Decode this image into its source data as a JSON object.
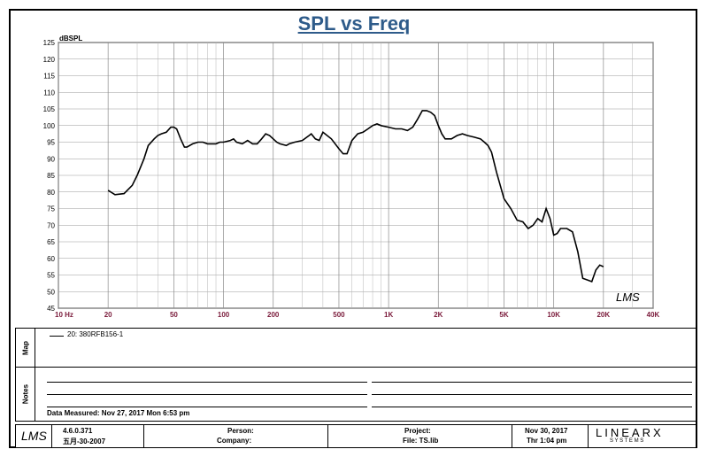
{
  "chart_data": {
    "type": "line",
    "title": "SPL vs Freq",
    "ylabel": "dBSPL",
    "xscale": "log",
    "xlim": [
      10,
      40000
    ],
    "ylim": [
      45,
      125
    ],
    "y_ticks": [
      45,
      50,
      55,
      60,
      65,
      70,
      75,
      80,
      85,
      90,
      95,
      100,
      105,
      110,
      115,
      120,
      125
    ],
    "x_tick_labels": [
      {
        "value": 10,
        "label": "10  Hz"
      },
      {
        "value": 20,
        "label": "20"
      },
      {
        "value": 50,
        "label": "50"
      },
      {
        "value": 100,
        "label": "100"
      },
      {
        "value": 200,
        "label": "200"
      },
      {
        "value": 500,
        "label": "500"
      },
      {
        "value": 1000,
        "label": "1K"
      },
      {
        "value": 2000,
        "label": "2K"
      },
      {
        "value": 5000,
        "label": "5K"
      },
      {
        "value": 10000,
        "label": "10K"
      },
      {
        "value": 20000,
        "label": "20K"
      },
      {
        "value": 40000,
        "label": "40K"
      }
    ],
    "grid": true,
    "watermark": "LMS",
    "series": [
      {
        "name": "20: 380RFB156-1",
        "color": "#000000",
        "x": [
          20,
          22,
          25,
          28,
          30,
          33,
          35,
          38,
          40,
          42,
          45,
          48,
          50,
          52,
          55,
          58,
          60,
          65,
          70,
          75,
          80,
          90,
          95,
          100,
          110,
          115,
          120,
          130,
          140,
          150,
          160,
          170,
          180,
          190,
          200,
          210,
          220,
          240,
          250,
          270,
          300,
          330,
          340,
          360,
          380,
          400,
          450,
          500,
          530,
          560,
          600,
          650,
          700,
          750,
          800,
          850,
          900,
          1000,
          1100,
          1200,
          1300,
          1400,
          1500,
          1600,
          1700,
          1800,
          1900,
          2000,
          2100,
          2200,
          2400,
          2600,
          2800,
          3000,
          3300,
          3600,
          3800,
          4000,
          4200,
          4500,
          5000,
          5500,
          6000,
          6500,
          7000,
          7500,
          8000,
          8500,
          9000,
          9500,
          10000,
          10500,
          11000,
          12000,
          13000,
          14000,
          15000,
          16000,
          17000,
          18000,
          19000,
          20000
        ],
        "y": [
          80.5,
          79.2,
          79.5,
          82,
          85,
          90,
          94,
          96,
          97,
          97.5,
          98,
          99.5,
          99.5,
          99,
          96,
          93.5,
          93.5,
          94.5,
          95,
          95,
          94.5,
          94.5,
          95,
          95,
          95.5,
          96,
          95,
          94.5,
          95.5,
          94.5,
          94.5,
          96,
          97.5,
          97,
          96,
          95,
          94.5,
          94,
          94.5,
          95,
          95.5,
          97,
          97.5,
          96,
          95.5,
          98,
          96,
          93,
          91.5,
          91.5,
          95.5,
          97.5,
          98,
          99,
          100,
          100.5,
          100,
          99.5,
          99,
          99,
          98.5,
          99.5,
          102,
          104.5,
          104.5,
          104,
          103,
          100,
          97.5,
          96,
          96,
          97,
          97.5,
          97,
          96.5,
          96,
          95,
          94,
          92,
          86,
          78,
          75,
          71.5,
          71,
          69,
          70,
          72,
          71,
          75,
          72,
          67,
          67.5,
          69,
          69,
          68,
          62,
          54,
          53.5,
          53,
          56.5,
          58,
          57.5
        ]
      }
    ]
  },
  "map": {
    "label": "Map",
    "legend_entry": "20: 380RFB156-1"
  },
  "notes": {
    "label": "Notes",
    "data_measured": "Data Measured: Nov 27, 2017  Mon  6:53 pm"
  },
  "footer": {
    "logo": "LMS",
    "version": "4.6.0.371",
    "build_date": "五月-30-2007",
    "person_label": "Person:",
    "company_label": "Company:",
    "project_label": "Project:",
    "file_label": "File: TS.lib",
    "date": "Nov 30, 2017",
    "time": "Thr  1:04 pm",
    "brand": "LINEARX",
    "brand_sub": "S Y S T E M S"
  }
}
